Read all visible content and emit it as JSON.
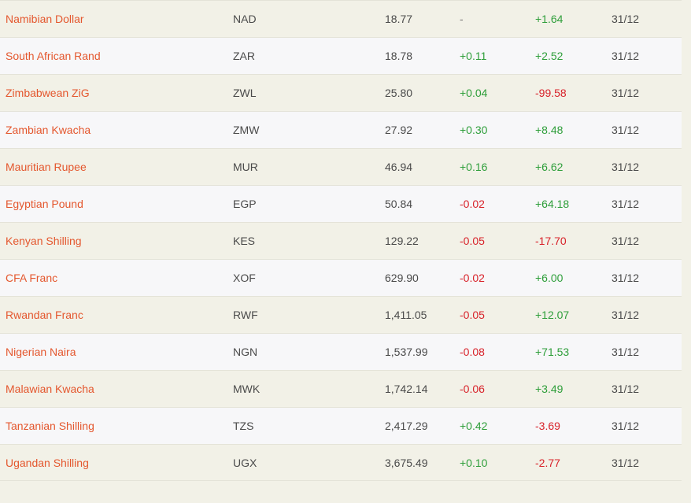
{
  "rows": [
    {
      "name": "Namibian Dollar",
      "code": "NAD",
      "rate": "18.77",
      "change": "-",
      "ytd": "+1.64",
      "date": "31/12"
    },
    {
      "name": "South African Rand",
      "code": "ZAR",
      "rate": "18.78",
      "change": "+0.11",
      "ytd": "+2.52",
      "date": "31/12"
    },
    {
      "name": "Zimbabwean ZiG",
      "code": "ZWL",
      "rate": "25.80",
      "change": "+0.04",
      "ytd": "-99.58",
      "date": "31/12"
    },
    {
      "name": "Zambian Kwacha",
      "code": "ZMW",
      "rate": "27.92",
      "change": "+0.30",
      "ytd": "+8.48",
      "date": "31/12"
    },
    {
      "name": "Mauritian Rupee",
      "code": "MUR",
      "rate": "46.94",
      "change": "+0.16",
      "ytd": "+6.62",
      "date": "31/12"
    },
    {
      "name": "Egyptian Pound",
      "code": "EGP",
      "rate": "50.84",
      "change": "-0.02",
      "ytd": "+64.18",
      "date": "31/12"
    },
    {
      "name": "Kenyan Shilling",
      "code": "KES",
      "rate": "129.22",
      "change": "-0.05",
      "ytd": "-17.70",
      "date": "31/12"
    },
    {
      "name": "CFA Franc",
      "code": "XOF",
      "rate": "629.90",
      "change": "-0.02",
      "ytd": "+6.00",
      "date": "31/12"
    },
    {
      "name": "Rwandan Franc",
      "code": "RWF",
      "rate": "1,411.05",
      "change": "-0.05",
      "ytd": "+12.07",
      "date": "31/12"
    },
    {
      "name": "Nigerian Naira",
      "code": "NGN",
      "rate": "1,537.99",
      "change": "-0.08",
      "ytd": "+71.53",
      "date": "31/12"
    },
    {
      "name": "Malawian Kwacha",
      "code": "MWK",
      "rate": "1,742.14",
      "change": "-0.06",
      "ytd": "+3.49",
      "date": "31/12"
    },
    {
      "name": "Tanzanian Shilling",
      "code": "TZS",
      "rate": "2,417.29",
      "change": "+0.42",
      "ytd": "-3.69",
      "date": "31/12"
    },
    {
      "name": "Ugandan Shilling",
      "code": "UGX",
      "rate": "3,675.49",
      "change": "+0.10",
      "ytd": "-2.77",
      "date": "31/12"
    }
  ],
  "colors": {
    "name_link": "#e4572e",
    "positive": "#2e9e3a",
    "negative": "#d8222a",
    "neutral": "#777777",
    "row_odd": "#f2f1e7",
    "row_even": "#f7f7f9"
  }
}
